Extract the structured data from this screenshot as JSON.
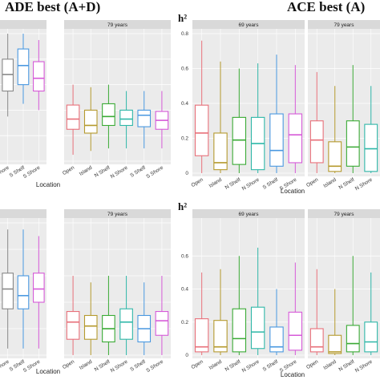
{
  "titles": {
    "left": "ADE best (A+D)",
    "right": "ACE best (A)",
    "h2_label": "h²"
  },
  "colors": {
    "Open": "#E8707A",
    "Island": "#B59A2E",
    "N Shelf": "#3AAA35",
    "N Shore": "#2FB7A8",
    "S Shelf": "#4A98E0",
    "S Shore": "#D65AD8",
    "strip_bg": "#D9D9D9",
    "panel_bg": "#EBEBEB",
    "grid": "#FFFFFF"
  },
  "chart_data": [
    {
      "type": "box",
      "name": "top-left-panels",
      "facets": [
        {
          "strip": "",
          "categories": [
            "Shore",
            "S Shelf",
            "S Shore"
          ],
          "boxes": [
            [
              0.35,
              0.55,
              0.68,
              0.8,
              1.0
            ],
            [
              0.45,
              0.6,
              0.75,
              0.88,
              1.0
            ],
            [
              0.4,
              0.55,
              0.65,
              0.78,
              0.95
            ]
          ]
        },
        {
          "strip": "79 years",
          "categories": [
            "Open",
            "Island",
            "N Shelf",
            "N Shore",
            "S Shelf",
            "S Shore"
          ],
          "boxes": [
            [
              0.05,
              0.25,
              0.33,
              0.44,
              0.6
            ],
            [
              0.08,
              0.22,
              0.28,
              0.4,
              0.58
            ],
            [
              0.1,
              0.28,
              0.35,
              0.45,
              0.6
            ],
            [
              0.1,
              0.28,
              0.33,
              0.4,
              0.55
            ],
            [
              0.1,
              0.27,
              0.36,
              0.4,
              0.55
            ],
            [
              0.1,
              0.25,
              0.32,
              0.39,
              0.55
            ]
          ]
        }
      ],
      "xlabel": "Location"
    },
    {
      "type": "box",
      "name": "top-right-panels",
      "facets": [
        {
          "strip": "69 years",
          "categories": [
            "Open",
            "Island",
            "N Shelf",
            "N Shore",
            "S Shelf",
            "S Shore"
          ],
          "boxes": [
            [
              0.0,
              0.1,
              0.23,
              0.39,
              0.76
            ],
            [
              0.0,
              0.02,
              0.06,
              0.23,
              0.64
            ],
            [
              0.0,
              0.05,
              0.19,
              0.32,
              0.6
            ],
            [
              0.0,
              0.02,
              0.17,
              0.32,
              0.63
            ],
            [
              0.0,
              0.04,
              0.13,
              0.34,
              0.68
            ],
            [
              0.0,
              0.06,
              0.22,
              0.34,
              0.62
            ]
          ]
        },
        {
          "strip": "79 years",
          "categories": [
            "Open",
            "Island",
            "N Shelf",
            "N Shore"
          ],
          "boxes": [
            [
              0.0,
              0.06,
              0.19,
              0.3,
              0.58
            ],
            [
              0.0,
              0.01,
              0.04,
              0.18,
              0.5
            ],
            [
              0.0,
              0.04,
              0.15,
              0.3,
              0.62
            ],
            [
              0.0,
              0.01,
              0.14,
              0.28,
              0.5
            ]
          ]
        }
      ],
      "ylim": [
        0,
        0.8
      ],
      "yticks": [
        0,
        0.2,
        0.4,
        0.6,
        0.8
      ],
      "xlabel": "Location"
    },
    {
      "type": "box",
      "name": "bottom-left-panels",
      "facets": [
        {
          "strip": "",
          "categories": [
            "Shore",
            "S Shelf",
            "S Shore"
          ],
          "boxes": [
            [
              0.05,
              0.35,
              0.5,
              0.62,
              0.95
            ],
            [
              0.05,
              0.35,
              0.45,
              0.6,
              0.95
            ],
            [
              0.05,
              0.4,
              0.5,
              0.62,
              0.9
            ]
          ]
        },
        {
          "strip": "79 years",
          "categories": [
            "Open",
            "Island",
            "N Shelf",
            "N Shore",
            "S Shelf",
            "S Shore"
          ],
          "boxes": [
            [
              0.0,
              0.12,
              0.25,
              0.33,
              0.6
            ],
            [
              0.0,
              0.12,
              0.22,
              0.3,
              0.55
            ],
            [
              0.0,
              0.1,
              0.2,
              0.3,
              0.6
            ],
            [
              0.0,
              0.12,
              0.25,
              0.35,
              0.6
            ],
            [
              0.0,
              0.1,
              0.2,
              0.3,
              0.55
            ],
            [
              0.0,
              0.15,
              0.26,
              0.33,
              0.6
            ]
          ]
        }
      ],
      "xlabel": "Location"
    },
    {
      "type": "box",
      "name": "bottom-right-panels",
      "facets": [
        {
          "strip": "69 years",
          "categories": [
            "Open",
            "Island",
            "N Shelf",
            "N Shore",
            "S Shelf",
            "S Shore"
          ],
          "boxes": [
            [
              0.0,
              0.02,
              0.05,
              0.22,
              0.5
            ],
            [
              0.0,
              0.02,
              0.05,
              0.21,
              0.52
            ],
            [
              0.0,
              0.02,
              0.1,
              0.28,
              0.6
            ],
            [
              0.0,
              0.04,
              0.14,
              0.29,
              0.65
            ],
            [
              0.0,
              0.02,
              0.05,
              0.17,
              0.4
            ],
            [
              0.0,
              0.03,
              0.12,
              0.26,
              0.56
            ]
          ]
        },
        {
          "strip": "79 years",
          "categories": [
            "Open",
            "Island",
            "N Shelf",
            "N Shore"
          ],
          "boxes": [
            [
              0.0,
              0.02,
              0.05,
              0.16,
              0.52
            ],
            [
              0.0,
              0.01,
              0.02,
              0.12,
              0.4
            ],
            [
              0.0,
              0.02,
              0.07,
              0.18,
              0.6
            ],
            [
              0.0,
              0.02,
              0.08,
              0.2,
              0.5
            ]
          ]
        }
      ],
      "ylim": [
        0,
        0.8
      ],
      "yticks": [
        0,
        0.2,
        0.4,
        0.6
      ],
      "xlabel": "Location"
    }
  ]
}
